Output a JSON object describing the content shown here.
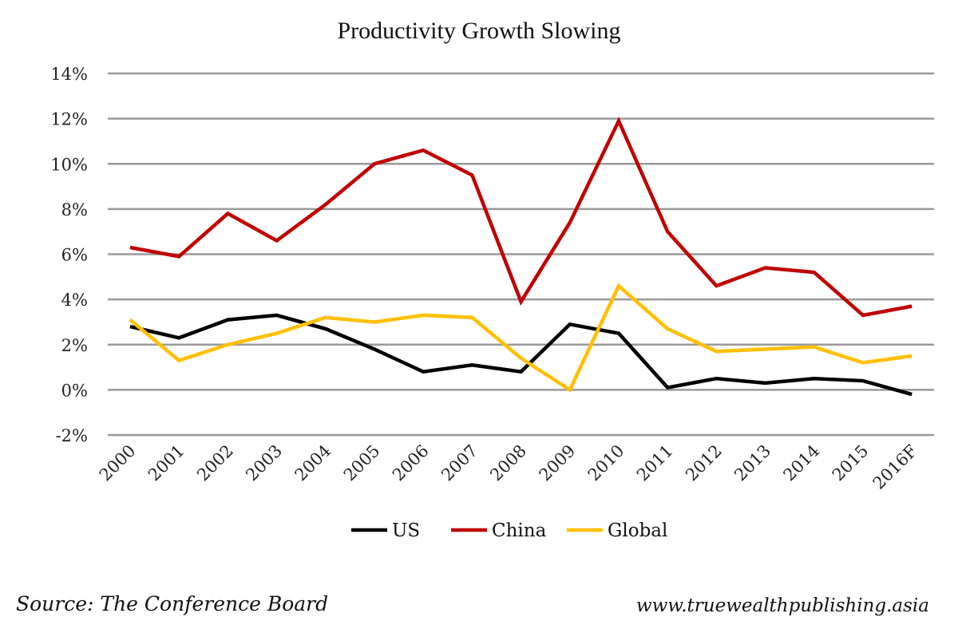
{
  "chart_data": {
    "type": "line",
    "title": "Productivity Growth Slowing",
    "categories": [
      "2000",
      "2001",
      "2002",
      "2003",
      "2004",
      "2005",
      "2006",
      "2007",
      "2008",
      "2009",
      "2010",
      "2011",
      "2012",
      "2013",
      "2014",
      "2015",
      "2016F"
    ],
    "y_ticks": [
      "-2%",
      "0%",
      "2%",
      "4%",
      "6%",
      "8%",
      "10%",
      "12%",
      "14%"
    ],
    "ylim": [
      -2,
      14
    ],
    "y_unit": "%",
    "grid": "horizontal",
    "legend_position": "bottom",
    "series": [
      {
        "name": "US",
        "color": "#000000",
        "values": [
          2.8,
          2.3,
          3.1,
          3.3,
          2.7,
          1.8,
          0.8,
          1.1,
          0.8,
          2.9,
          2.5,
          0.1,
          0.5,
          0.3,
          0.5,
          0.4,
          -0.2
        ]
      },
      {
        "name": "China",
        "color": "#c00000",
        "values": [
          6.3,
          5.9,
          7.8,
          6.6,
          8.2,
          10.0,
          10.6,
          9.5,
          3.9,
          7.4,
          11.9,
          7.0,
          4.6,
          5.4,
          5.2,
          3.3,
          3.7
        ]
      },
      {
        "name": "Global",
        "color": "#ffc000",
        "values": [
          3.1,
          1.3,
          2.0,
          2.5,
          3.2,
          3.0,
          3.3,
          3.2,
          1.4,
          0.0,
          4.6,
          2.7,
          1.7,
          1.8,
          1.9,
          1.2,
          1.5
        ]
      }
    ]
  },
  "footer": {
    "source": "Source: The Conference Board",
    "website": "www.truewealthpublishing.asia"
  }
}
